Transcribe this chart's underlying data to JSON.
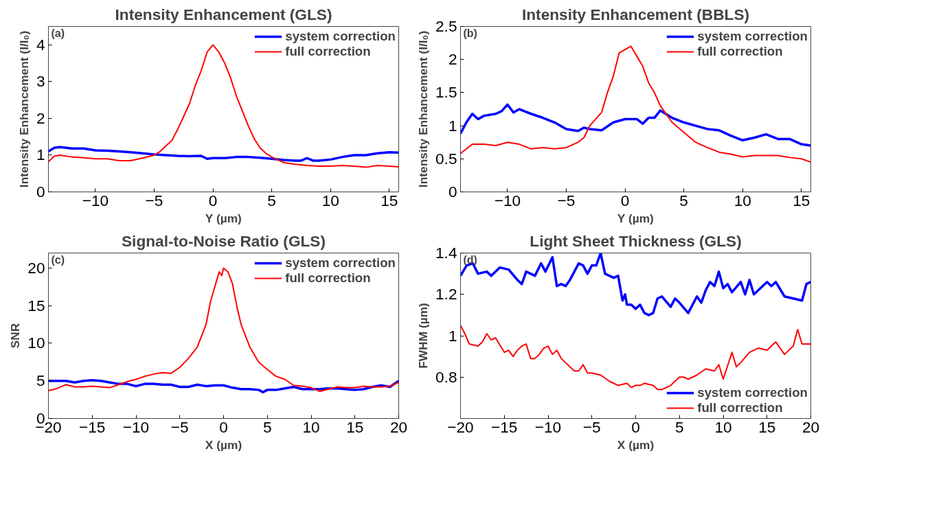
{
  "chart_data": [
    {
      "type": "line",
      "title": "Intensity Enhancement (GLS)",
      "xlabel": "Y (µm)",
      "ylabel": "Intensity Enhancement (I/I₀)",
      "annotations": [
        "(a)"
      ],
      "xlim": [
        -14,
        15.8
      ],
      "ylim": [
        0,
        4.5
      ],
      "xticks": [
        -10,
        -5,
        0,
        5,
        10,
        15
      ],
      "yticks": [
        0,
        1,
        2,
        3,
        4
      ],
      "grid": false,
      "legend": "top right",
      "series": [
        {
          "name": "system correction",
          "color": "#0000ff",
          "x": [
            -14,
            -13.5,
            -13,
            -12,
            -11,
            -10,
            -9,
            -8,
            -7,
            -6,
            -5,
            -4,
            -3,
            -2,
            -1,
            -0.5,
            0,
            1,
            2,
            3,
            4,
            5,
            6,
            7,
            7.5,
            8,
            8.5,
            9,
            10,
            11,
            12,
            13,
            14,
            15,
            15.8
          ],
          "values": [
            1.1,
            1.2,
            1.22,
            1.18,
            1.18,
            1.13,
            1.12,
            1.1,
            1.08,
            1.05,
            1.02,
            1.0,
            0.98,
            0.97,
            0.98,
            0.9,
            0.92,
            0.92,
            0.95,
            0.95,
            0.93,
            0.9,
            0.87,
            0.85,
            0.85,
            0.92,
            0.85,
            0.85,
            0.88,
            0.95,
            1.0,
            1.0,
            1.05,
            1.08,
            1.07
          ]
        },
        {
          "name": "full correction",
          "color": "#ff0000",
          "x": [
            -14,
            -13.5,
            -13,
            -12,
            -11,
            -10,
            -9,
            -8,
            -7,
            -6,
            -5,
            -4.5,
            -4,
            -3.5,
            -3,
            -2.5,
            -2,
            -1.5,
            -1,
            -0.5,
            0,
            0.5,
            1,
            1.5,
            2,
            2.5,
            3,
            3.5,
            4,
            4.5,
            5,
            6,
            7,
            8,
            9,
            10,
            11,
            12,
            13,
            14,
            15,
            15.8
          ],
          "values": [
            0.82,
            0.97,
            1.0,
            0.95,
            0.93,
            0.9,
            0.9,
            0.85,
            0.85,
            0.92,
            1.0,
            1.1,
            1.25,
            1.4,
            1.7,
            2.05,
            2.4,
            2.9,
            3.3,
            3.8,
            4.0,
            3.8,
            3.5,
            3.1,
            2.6,
            2.2,
            1.8,
            1.45,
            1.2,
            1.05,
            0.95,
            0.8,
            0.75,
            0.72,
            0.7,
            0.7,
            0.72,
            0.7,
            0.67,
            0.72,
            0.7,
            0.68
          ]
        }
      ]
    },
    {
      "type": "line",
      "title": "Intensity Enhancement (BBLS)",
      "xlabel": "Y (µm)",
      "ylabel": "Intensity Enhancement (I/I₀)",
      "annotations": [
        "(b)"
      ],
      "xlim": [
        -14,
        15.8
      ],
      "ylim": [
        0,
        2.5
      ],
      "xticks": [
        -10,
        -5,
        0,
        5,
        10,
        15
      ],
      "yticks": [
        0,
        0.5,
        1,
        1.5,
        2,
        2.5
      ],
      "grid": false,
      "legend": "top right",
      "series": [
        {
          "name": "system correction",
          "color": "#0000ff",
          "x": [
            -14,
            -13.5,
            -13,
            -12.5,
            -12,
            -11,
            -10.5,
            -10,
            -9.5,
            -9,
            -8,
            -7,
            -6,
            -5,
            -4,
            -3.5,
            -3,
            -2,
            -1,
            0,
            1,
            1.5,
            2,
            2.5,
            3,
            4,
            5,
            6,
            7,
            8,
            9,
            10,
            11,
            12,
            13,
            14,
            15,
            15.8
          ],
          "values": [
            0.88,
            1.05,
            1.18,
            1.1,
            1.15,
            1.18,
            1.22,
            1.32,
            1.2,
            1.25,
            1.18,
            1.12,
            1.05,
            0.95,
            0.92,
            0.97,
            0.95,
            0.93,
            1.05,
            1.1,
            1.1,
            1.03,
            1.12,
            1.12,
            1.23,
            1.12,
            1.05,
            1.0,
            0.95,
            0.93,
            0.85,
            0.78,
            0.82,
            0.87,
            0.8,
            0.8,
            0.72,
            0.7
          ]
        },
        {
          "name": "full correction",
          "color": "#ff0000",
          "x": [
            -14,
            -13,
            -12,
            -11,
            -10,
            -9,
            -8,
            -7,
            -6,
            -5,
            -4,
            -3.5,
            -3,
            -2.5,
            -2,
            -1.5,
            -1,
            -0.5,
            0,
            0.5,
            1,
            1.5,
            2,
            2.5,
            3,
            4,
            5,
            6,
            7,
            8,
            9,
            10,
            11,
            12,
            13,
            14,
            15,
            15.8
          ],
          "values": [
            0.58,
            0.72,
            0.72,
            0.7,
            0.75,
            0.72,
            0.65,
            0.67,
            0.65,
            0.67,
            0.75,
            0.82,
            1.0,
            1.1,
            1.2,
            1.5,
            1.75,
            2.1,
            2.15,
            2.2,
            2.05,
            1.9,
            1.65,
            1.5,
            1.3,
            1.05,
            0.9,
            0.75,
            0.67,
            0.6,
            0.57,
            0.53,
            0.55,
            0.55,
            0.55,
            0.52,
            0.5,
            0.45
          ]
        }
      ]
    },
    {
      "type": "line",
      "title": "Signal-to-Noise Ratio (GLS)",
      "xlabel": "X (µm)",
      "ylabel": "SNR",
      "annotations": [
        "(c)"
      ],
      "xlim": [
        -20,
        20
      ],
      "ylim": [
        0,
        22
      ],
      "xticks": [
        -20,
        -15,
        -10,
        -5,
        0,
        5,
        10,
        15,
        20
      ],
      "yticks": [
        0,
        5,
        10,
        15,
        20
      ],
      "grid": false,
      "legend": "top right",
      "series": [
        {
          "name": "system correction",
          "color": "#0000ff",
          "x": [
            -20,
            -19,
            -18,
            -17,
            -16,
            -15,
            -14,
            -13,
            -12,
            -11,
            -10,
            -9,
            -8,
            -7,
            -6,
            -5,
            -4,
            -3,
            -2,
            -1,
            0,
            1,
            2,
            3,
            4,
            4.5,
            5,
            6,
            7,
            8,
            9,
            10,
            11,
            12,
            13,
            14,
            15,
            16,
            17,
            18,
            19,
            20
          ],
          "values": [
            5.0,
            5.0,
            5.0,
            4.8,
            5.0,
            5.1,
            5.0,
            4.8,
            4.6,
            4.6,
            4.3,
            4.6,
            4.6,
            4.5,
            4.5,
            4.2,
            4.2,
            4.5,
            4.3,
            4.4,
            4.4,
            4.1,
            3.9,
            3.9,
            3.8,
            3.5,
            3.8,
            3.8,
            4.0,
            4.2,
            3.9,
            3.9,
            3.9,
            4.0,
            4.0,
            3.9,
            3.8,
            3.9,
            4.2,
            4.4,
            4.2,
            5.0
          ]
        },
        {
          "name": "full correction",
          "color": "#ff0000",
          "x": [
            -20,
            -19,
            -18,
            -17,
            -16,
            -15,
            -14,
            -13,
            -12,
            -11,
            -10,
            -9,
            -8,
            -7,
            -6,
            -5,
            -4,
            -3,
            -2,
            -1.5,
            -1,
            -0.5,
            -0.2,
            0,
            0.5,
            1,
            1.5,
            2,
            3,
            4,
            5,
            6,
            7,
            8,
            9,
            10,
            11,
            12,
            13,
            14,
            15,
            16,
            17,
            18,
            19,
            20
          ],
          "values": [
            3.7,
            4.0,
            4.5,
            4.2,
            4.2,
            4.3,
            4.2,
            4.1,
            4.5,
            4.9,
            5.2,
            5.6,
            5.9,
            6.1,
            6.0,
            6.8,
            8.0,
            9.5,
            12.5,
            15.5,
            17.5,
            19.5,
            19.0,
            20.0,
            19.5,
            18.0,
            15.0,
            12.5,
            9.5,
            7.5,
            6.5,
            5.6,
            5.2,
            4.4,
            4.3,
            4.1,
            3.6,
            3.9,
            4.2,
            4.1,
            4.1,
            4.3,
            4.2,
            4.2,
            4.3,
            4.8
          ]
        }
      ]
    },
    {
      "type": "line",
      "title": "Light Sheet Thickness (GLS)",
      "xlabel": "X (µm)",
      "ylabel": "FWHM (µm)",
      "annotations": [
        "(d)"
      ],
      "xlim": [
        -20,
        20
      ],
      "ylim": [
        0.6,
        1.4
      ],
      "xticks": [
        -20,
        -15,
        -10,
        -5,
        0,
        5,
        10,
        15,
        20
      ],
      "yticks": [
        0.8,
        1,
        1.2,
        1.4
      ],
      "grid": false,
      "legend": "bottom right",
      "series": [
        {
          "name": "system correction",
          "color": "#0000ff",
          "x": [
            -20,
            -19.3,
            -18.6,
            -18,
            -17,
            -16.5,
            -15.5,
            -14.5,
            -13.5,
            -13,
            -12.5,
            -11.5,
            -10.8,
            -10.3,
            -9.5,
            -9,
            -8.5,
            -8,
            -7.5,
            -6.5,
            -6,
            -5.5,
            -5,
            -4.5,
            -4,
            -3.5,
            -2.5,
            -2,
            -1.5,
            -1.2,
            -1,
            -0.5,
            0,
            0.5,
            1,
            1.5,
            2,
            2.5,
            3,
            4,
            4.5,
            5,
            6,
            7,
            7.5,
            8,
            8.5,
            9,
            9.5,
            10,
            10.5,
            11,
            12,
            12.5,
            13,
            13.5,
            14,
            15,
            15.5,
            16,
            17,
            18,
            19,
            19.5,
            20
          ],
          "values": [
            1.29,
            1.34,
            1.35,
            1.3,
            1.31,
            1.29,
            1.33,
            1.32,
            1.27,
            1.25,
            1.31,
            1.29,
            1.35,
            1.31,
            1.38,
            1.24,
            1.25,
            1.24,
            1.27,
            1.35,
            1.34,
            1.3,
            1.34,
            1.34,
            1.4,
            1.3,
            1.28,
            1.29,
            1.17,
            1.2,
            1.15,
            1.15,
            1.13,
            1.15,
            1.11,
            1.1,
            1.11,
            1.18,
            1.19,
            1.14,
            1.18,
            1.16,
            1.11,
            1.19,
            1.16,
            1.22,
            1.26,
            1.24,
            1.31,
            1.23,
            1.25,
            1.21,
            1.26,
            1.2,
            1.27,
            1.2,
            1.22,
            1.26,
            1.24,
            1.26,
            1.19,
            1.18,
            1.17,
            1.25,
            1.26
          ]
        },
        {
          "name": "full correction",
          "color": "#ff0000",
          "x": [
            -20,
            -19.5,
            -19,
            -18,
            -17.5,
            -17,
            -16.5,
            -16,
            -15,
            -14.5,
            -14,
            -13.5,
            -13,
            -12.5,
            -12,
            -11.5,
            -11,
            -10.5,
            -10,
            -9.5,
            -9,
            -8.5,
            -8,
            -7.5,
            -7,
            -6.5,
            -6,
            -5.5,
            -5,
            -4,
            -3,
            -2,
            -1,
            -0.5,
            0,
            0.5,
            1,
            2,
            2.5,
            3,
            4,
            5,
            5.5,
            6,
            7,
            8,
            9,
            9.5,
            10,
            11,
            11.5,
            12,
            13,
            14,
            15,
            16,
            17,
            18,
            18.5,
            19,
            20
          ],
          "values": [
            1.05,
            1.01,
            0.96,
            0.95,
            0.97,
            1.01,
            0.98,
            0.99,
            0.92,
            0.93,
            0.9,
            0.93,
            0.95,
            0.96,
            0.89,
            0.89,
            0.91,
            0.94,
            0.95,
            0.91,
            0.93,
            0.89,
            0.87,
            0.85,
            0.83,
            0.83,
            0.86,
            0.82,
            0.82,
            0.81,
            0.78,
            0.76,
            0.77,
            0.75,
            0.76,
            0.76,
            0.77,
            0.76,
            0.74,
            0.74,
            0.76,
            0.8,
            0.8,
            0.79,
            0.81,
            0.84,
            0.83,
            0.86,
            0.79,
            0.92,
            0.85,
            0.87,
            0.92,
            0.94,
            0.93,
            0.97,
            0.91,
            0.95,
            1.03,
            0.96,
            0.96
          ]
        }
      ]
    }
  ]
}
